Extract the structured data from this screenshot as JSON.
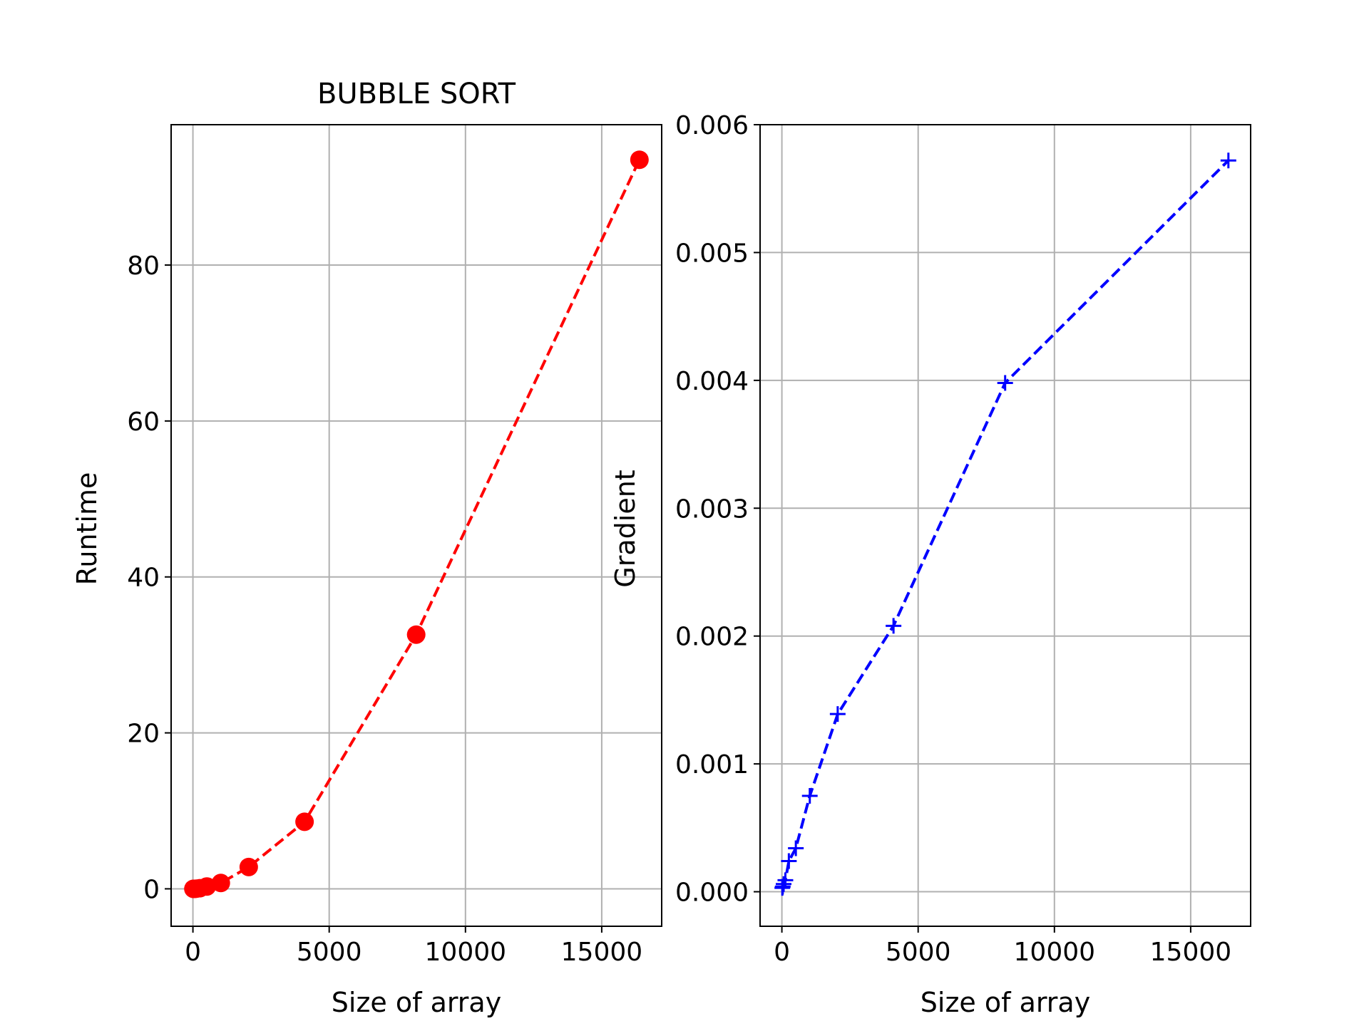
{
  "chart_data": [
    {
      "type": "line",
      "title": "BUBBLE SORT",
      "xlabel": "Size of array",
      "ylabel": "Runtime",
      "xlim": [
        -800,
        17200
      ],
      "ylim": [
        -4.8,
        98
      ],
      "xticks": [
        0,
        5000,
        10000,
        15000
      ],
      "xtick_labels": [
        "0",
        "5000",
        "10000",
        "15000"
      ],
      "yticks": [
        0,
        20,
        40,
        60,
        80
      ],
      "ytick_labels": [
        "0",
        "20",
        "40",
        "60",
        "80"
      ],
      "grid": true,
      "series": [
        {
          "color": "#ff0000",
          "marker": "circle",
          "line_style": "dashed",
          "x": [
            16,
            32,
            64,
            128,
            256,
            512,
            1024,
            2048,
            4096,
            8192,
            16384
          ],
          "y": [
            0.0,
            0.0,
            0.0,
            0.02,
            0.08,
            0.3,
            0.75,
            2.8,
            8.6,
            32.6,
            93.5
          ]
        }
      ]
    },
    {
      "type": "line",
      "title": "",
      "xlabel": "Size of array",
      "ylabel": "Gradient",
      "xlim": [
        -800,
        17200
      ],
      "ylim": [
        -0.00027,
        0.006
      ],
      "xticks": [
        0,
        5000,
        10000,
        15000
      ],
      "xtick_labels": [
        "0",
        "5000",
        "10000",
        "15000"
      ],
      "yticks": [
        0.0,
        0.001,
        0.002,
        0.003,
        0.004,
        0.005,
        0.006
      ],
      "ytick_labels": [
        "0.000",
        "0.001",
        "0.002",
        "0.003",
        "0.004",
        "0.005",
        "0.006"
      ],
      "grid": true,
      "series": [
        {
          "color": "#0000ff",
          "marker": "plus",
          "line_style": "dashed",
          "x": [
            16,
            32,
            64,
            128,
            256,
            512,
            1024,
            2048,
            4096,
            8192,
            16384
          ],
          "y": [
            3e-05,
            4e-05,
            6e-05,
            9e-05,
            0.00024,
            0.00034,
            0.00075,
            0.00139,
            0.00208,
            0.00398,
            0.00572
          ]
        }
      ]
    }
  ]
}
